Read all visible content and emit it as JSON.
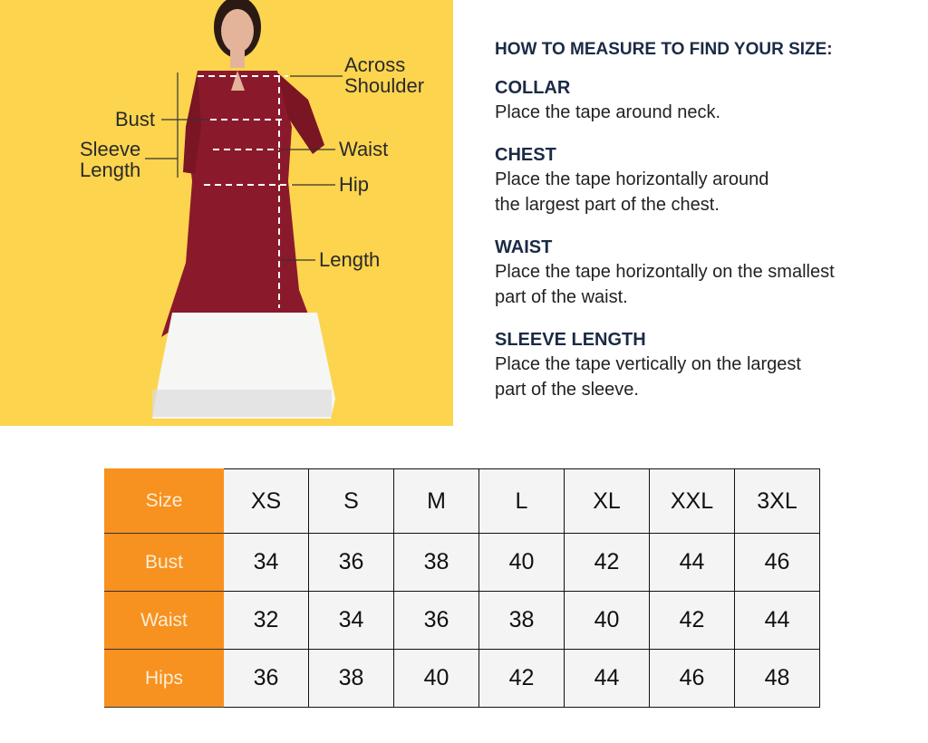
{
  "figure": {
    "labels": {
      "across_shoulder": "Across\nShoulder",
      "bust": "Bust",
      "sleeve_length": "Sleeve\nLength",
      "waist": "Waist",
      "hip": "Hip",
      "length": "Length"
    },
    "colors": {
      "background": "#fcd44e",
      "kurta": "#8a1a2b",
      "skirt": "#f6f6f4"
    }
  },
  "guide": {
    "heading": "HOW TO MEASURE TO FIND YOUR SIZE:",
    "sections": [
      {
        "title": "COLLAR",
        "text": "Place the tape around neck."
      },
      {
        "title": "CHEST",
        "text": "Place the tape horizontally around\nthe largest part of the chest."
      },
      {
        "title": "WAIST",
        "text": "Place the tape horizontally on the smallest\npart of the waist."
      },
      {
        "title": "SLEEVE LENGTH",
        "text": "Place the tape vertically on the largest\npart of the sleeve."
      }
    ]
  },
  "size_table": {
    "header_color": "#f7911f",
    "rows": [
      {
        "label": "Size",
        "values": [
          "XS",
          "S",
          "M",
          "L",
          "XL",
          "XXL",
          "3XL"
        ]
      },
      {
        "label": "Bust",
        "values": [
          "34",
          "36",
          "38",
          "40",
          "42",
          "44",
          "46"
        ]
      },
      {
        "label": "Waist",
        "values": [
          "32",
          "34",
          "36",
          "38",
          "40",
          "42",
          "44"
        ]
      },
      {
        "label": "Hips",
        "values": [
          "36",
          "38",
          "40",
          "42",
          "44",
          "46",
          "48"
        ]
      }
    ]
  }
}
